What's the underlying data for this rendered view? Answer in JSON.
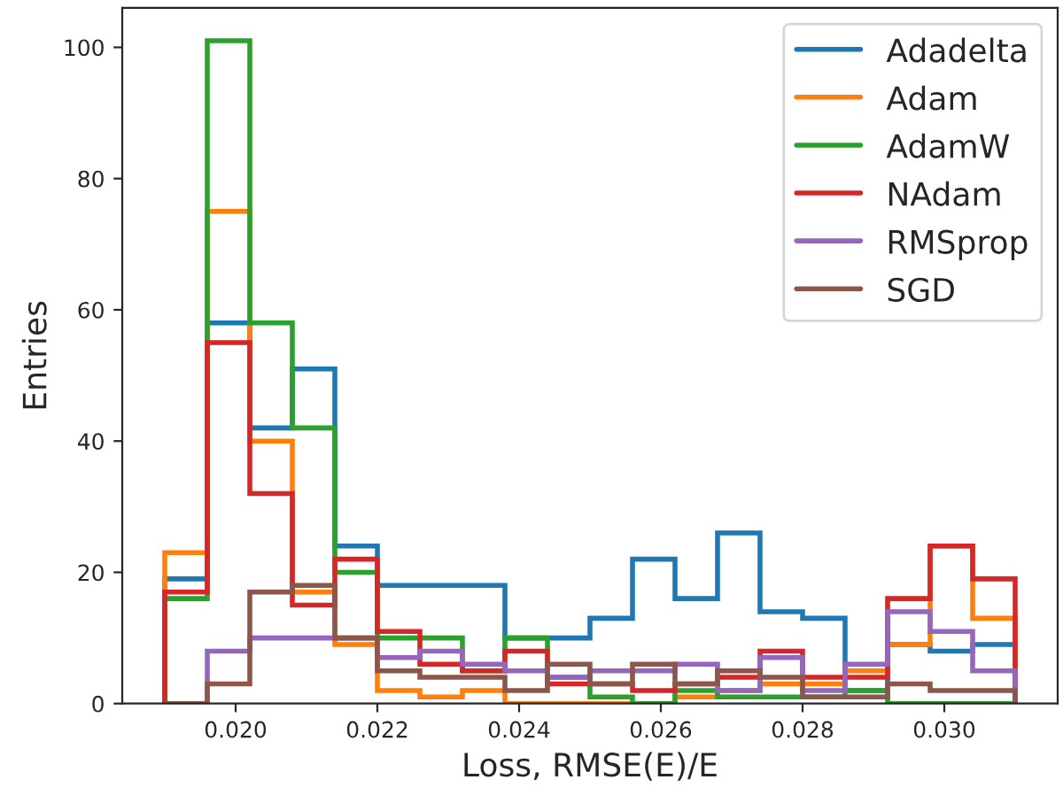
{
  "chart_data": {
    "type": "histogram",
    "xlabel": "Loss, RMSE(E)/E",
    "ylabel": "Entries",
    "bins": [
      0.019,
      0.0196,
      0.0202,
      0.0208,
      0.0214,
      0.022,
      0.0226,
      0.0232,
      0.0238,
      0.0244,
      0.025,
      0.0256,
      0.0262,
      0.0268,
      0.0274,
      0.028,
      0.0286,
      0.0292,
      0.0298,
      0.0304,
      0.031
    ],
    "series": [
      {
        "name": "Adadelta",
        "color": "#1f77b4",
        "values": [
          19,
          58,
          42,
          51,
          24,
          18,
          18,
          18,
          10,
          10,
          13,
          22,
          16,
          26,
          14,
          13,
          2,
          9,
          8,
          9
        ]
      },
      {
        "name": "Adam",
        "color": "#ff7f0e",
        "values": [
          23,
          75,
          40,
          17,
          9,
          2,
          1,
          2,
          0,
          0,
          0,
          0,
          1,
          2,
          3,
          3,
          5,
          9,
          24,
          13
        ]
      },
      {
        "name": "AdamW",
        "color": "#2ca02c",
        "values": [
          16,
          101,
          58,
          42,
          20,
          10,
          10,
          5,
          10,
          4,
          1,
          0,
          2,
          1,
          1,
          1,
          2,
          0,
          0,
          0
        ]
      },
      {
        "name": "NAdam",
        "color": "#d62728",
        "values": [
          17,
          55,
          32,
          15,
          22,
          11,
          6,
          5,
          8,
          3,
          3,
          2,
          3,
          4,
          8,
          4,
          4,
          16,
          24,
          19
        ]
      },
      {
        "name": "RMSprop",
        "color": "#9467bd",
        "values": [
          0,
          8,
          10,
          10,
          10,
          7,
          8,
          6,
          5,
          4,
          5,
          5,
          6,
          2,
          7,
          2,
          6,
          14,
          11,
          5
        ]
      },
      {
        "name": "SGD",
        "color": "#8c564b",
        "values": [
          0,
          3,
          17,
          18,
          10,
          5,
          4,
          4,
          2,
          6,
          3,
          6,
          3,
          5,
          4,
          1,
          1,
          3,
          2,
          2
        ]
      }
    ],
    "xlim": [
      0.0184,
      0.0316
    ],
    "ylim": [
      0,
      106
    ],
    "xticks": [
      {
        "value": 0.02,
        "label": "0.020"
      },
      {
        "value": 0.022,
        "label": "0.022"
      },
      {
        "value": 0.024,
        "label": "0.024"
      },
      {
        "value": 0.026,
        "label": "0.026"
      },
      {
        "value": 0.028,
        "label": "0.028"
      },
      {
        "value": 0.03,
        "label": "0.030"
      }
    ],
    "yticks": [
      0,
      20,
      40,
      60,
      80,
      100
    ],
    "legend": "top right",
    "grid": false
  }
}
